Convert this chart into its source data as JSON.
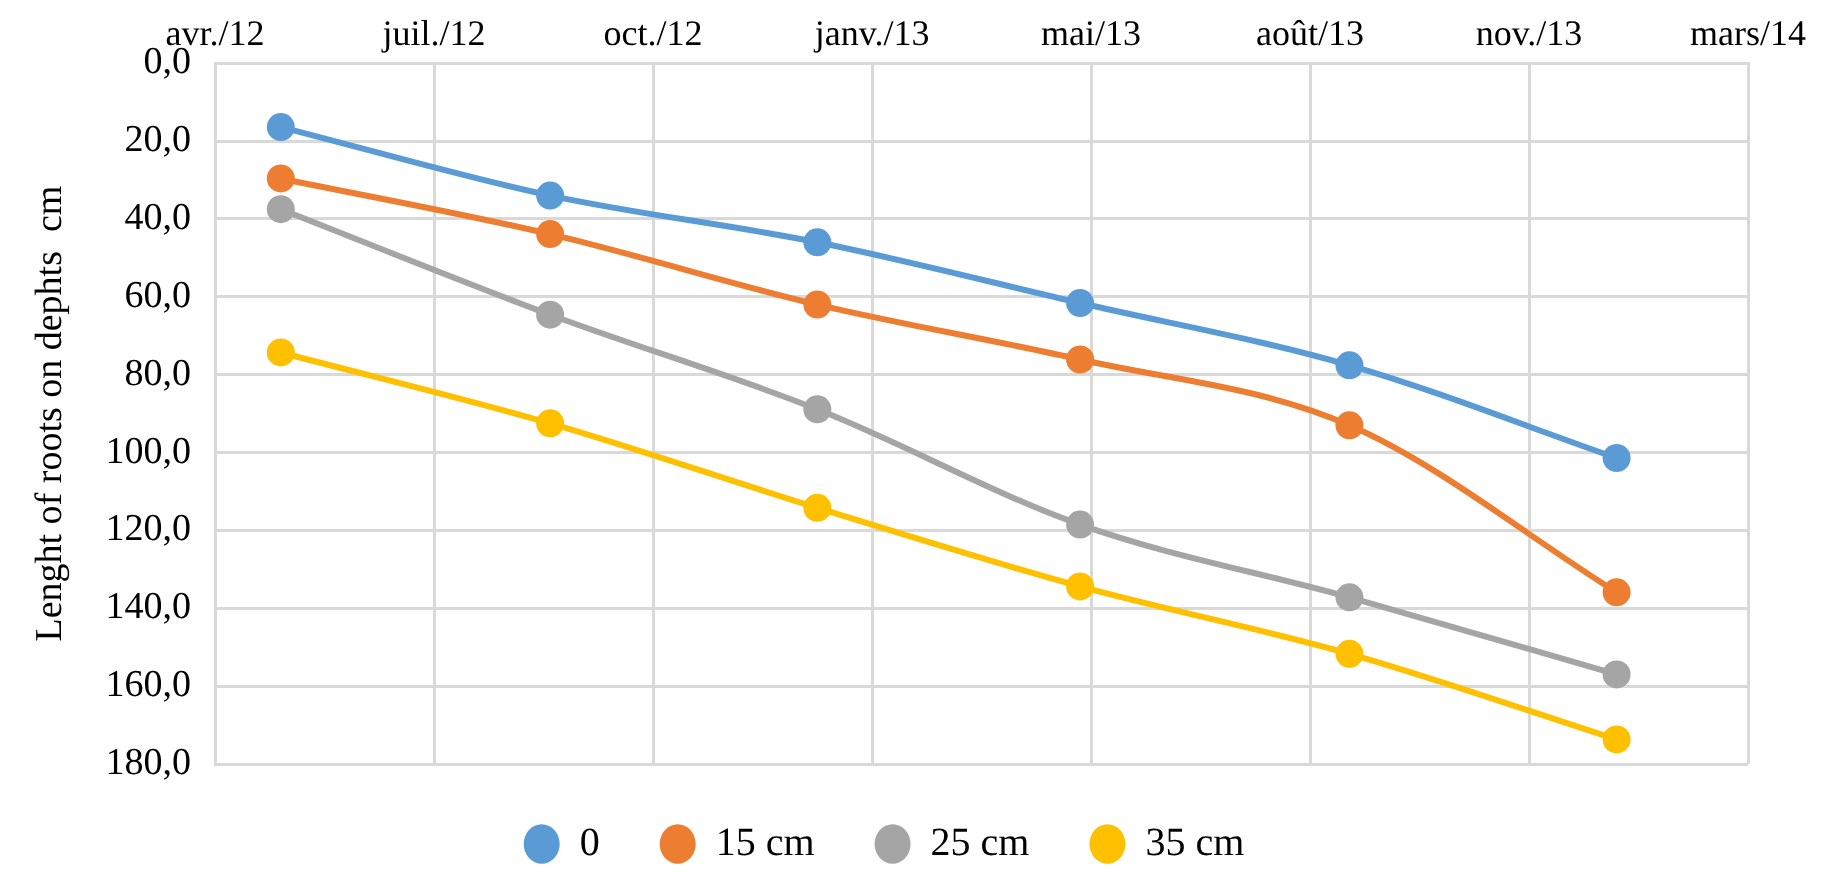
{
  "chart_data": {
    "type": "line",
    "ylabel": "Lenght of roots on dephts  cm",
    "x": [
      "2012-05-01",
      "2012-09-01",
      "2013-01-01",
      "2013-05-01",
      "2013-09-01",
      "2014-01-01"
    ],
    "xlim": [
      "2012-04-01",
      "2014-03-02"
    ],
    "xticks": [
      {
        "value": "2012-04-01",
        "label": "avr./12"
      },
      {
        "value": "2012-07-10",
        "label": "juil./12"
      },
      {
        "value": "2012-10-18",
        "label": "oct./12"
      },
      {
        "value": "2013-01-26",
        "label": "janv./13"
      },
      {
        "value": "2013-05-06",
        "label": "mai/13"
      },
      {
        "value": "2013-08-14",
        "label": "août/13"
      },
      {
        "value": "2013-11-22",
        "label": "nov./13"
      },
      {
        "value": "2014-03-02",
        "label": "mars/14"
      }
    ],
    "ylim": [
      180,
      0
    ],
    "yticks": [
      {
        "value": 0,
        "label": "0,0"
      },
      {
        "value": 20,
        "label": "20,0"
      },
      {
        "value": 40,
        "label": "40,0"
      },
      {
        "value": 60,
        "label": "60,0"
      },
      {
        "value": 80,
        "label": "80,0"
      },
      {
        "value": 100,
        "label": "100,0"
      },
      {
        "value": 120,
        "label": "120,0"
      },
      {
        "value": 140,
        "label": "140,0"
      },
      {
        "value": 160,
        "label": "160,0"
      },
      {
        "value": 180,
        "label": "180,0"
      }
    ],
    "series": [
      {
        "name": "0",
        "color": "#5b9bd5",
        "values": [
          16.4,
          34,
          46,
          61.6,
          77.6,
          101.4
        ]
      },
      {
        "name": "15 cm",
        "color": "#ed7d31",
        "values": [
          29.6,
          43.9,
          62,
          76.1,
          93,
          135.9
        ]
      },
      {
        "name": "25 cm",
        "color": "#a5a5a5",
        "values": [
          37.5,
          64.6,
          88.9,
          118.5,
          137.2,
          157
        ]
      },
      {
        "name": "35 cm",
        "color": "#ffc000",
        "values": [
          74.3,
          92.5,
          114.2,
          134.4,
          151.7,
          173.7
        ]
      }
    ],
    "grid": true,
    "legend": "bottom",
    "marker": "circle",
    "line_style": "solid"
  }
}
